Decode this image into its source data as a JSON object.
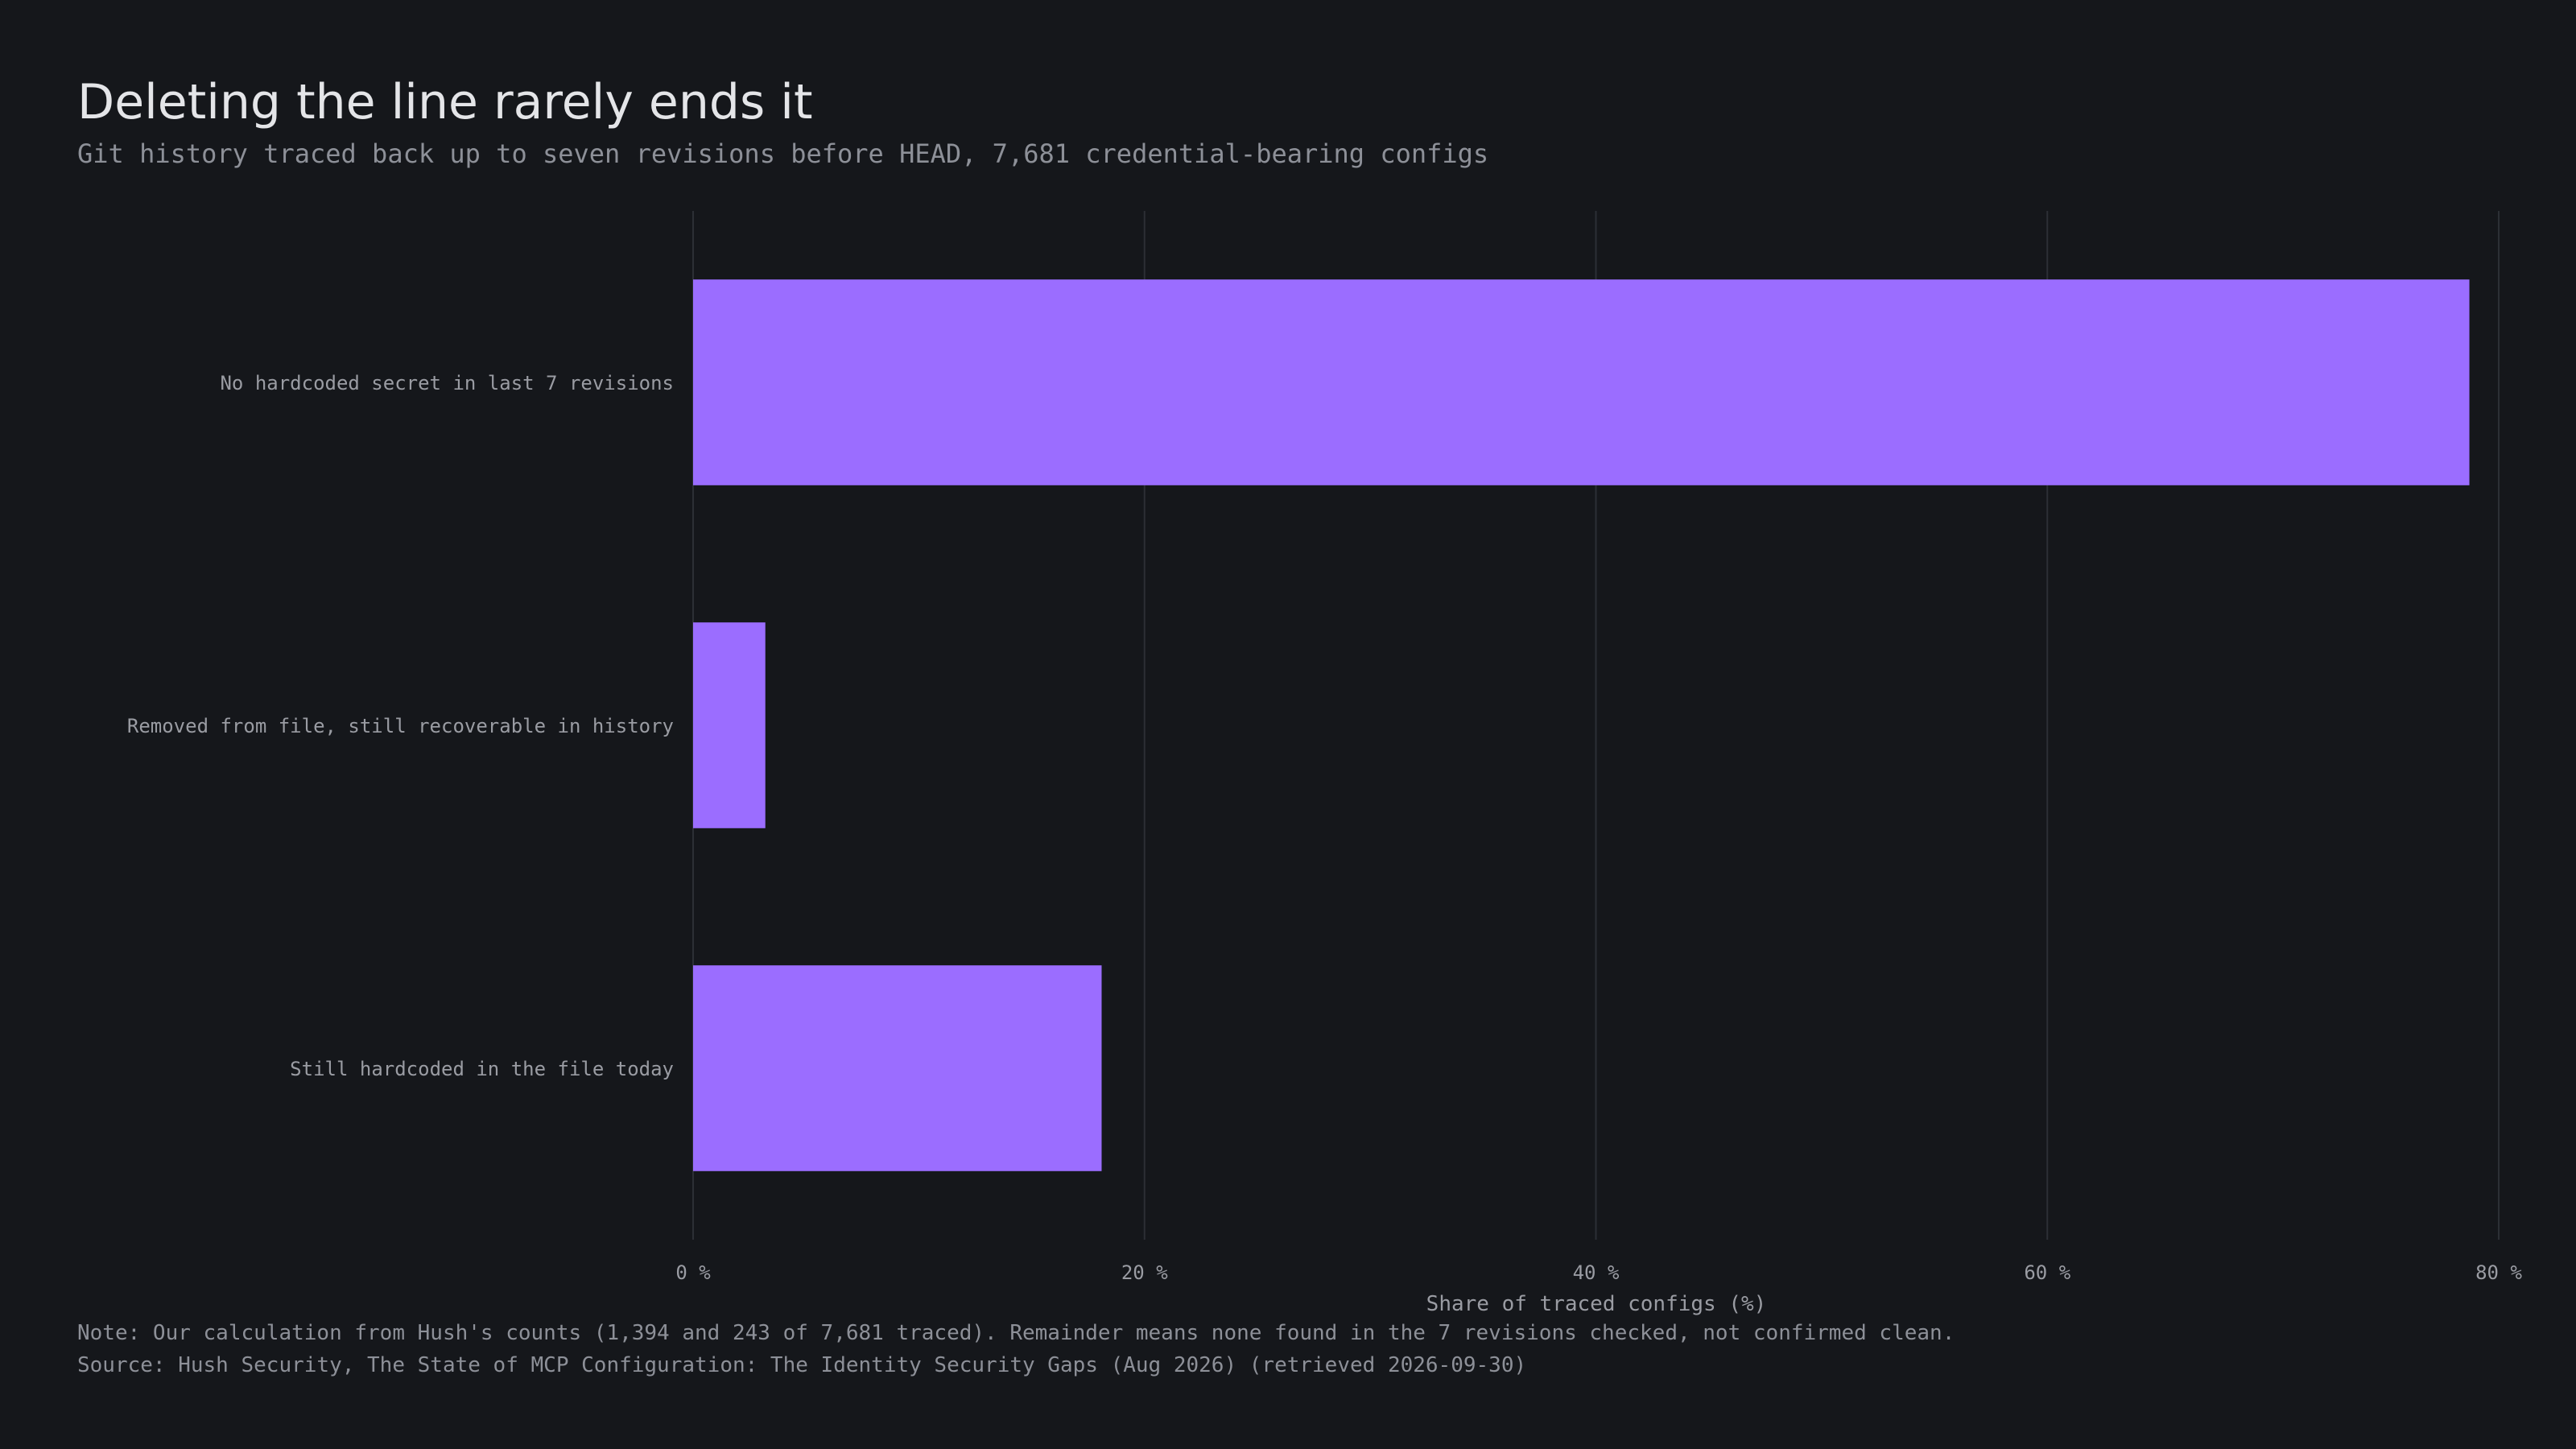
{
  "title": "Deleting the line rarely ends it",
  "subtitle": "Git history traced back up to seven revisions before HEAD, 7,681 credential-bearing configs",
  "note": "Note: Our calculation from Hush's counts (1,394 and 243 of 7,681 traced). Remainder means none found in the 7 revisions checked, not confirmed clean.",
  "source": "Source: Hush Security, The State of MCP Configuration: The Identity Security Gaps (Aug 2026) (retrieved 2026-09-30)",
  "colors": {
    "bar": "#9b6dff",
    "grid": "#2c2f35",
    "tick_text": "#9a9ca3",
    "background": "#15171b"
  },
  "chart_data": {
    "type": "bar",
    "orientation": "horizontal",
    "categories": [
      "No hardcoded secret in last 7 revisions",
      "Removed from file, still recoverable in history",
      "Still hardcoded in the file today"
    ],
    "values": [
      78.7,
      3.2,
      18.1
    ],
    "xlabel": "Share of traced configs (%)",
    "ylabel": "",
    "xlim": [
      0,
      80
    ],
    "xticks": [
      0,
      20,
      40,
      60,
      80
    ],
    "xtick_labels": [
      "0 %",
      "20 %",
      "40 %",
      "60 %",
      "80 %"
    ],
    "grid": "vertical"
  }
}
